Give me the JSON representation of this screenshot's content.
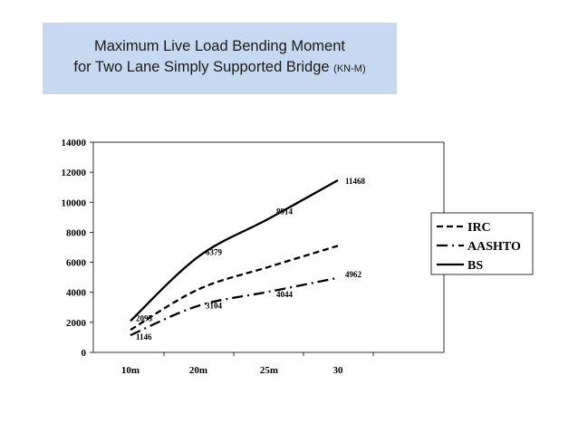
{
  "title": {
    "line1": "Maximum Live Load Bending Moment",
    "line2": "for Two Lane Simply Supported  Bridge",
    "unit": "(KN-M)"
  },
  "chart_data": {
    "type": "line",
    "categories": [
      "10m",
      "20m",
      "25m",
      "30"
    ],
    "ylim": [
      0,
      14000
    ],
    "yticks": [
      0,
      2000,
      4000,
      6000,
      8000,
      10000,
      12000,
      14000
    ],
    "grid": false,
    "legend_position": "right",
    "series": [
      {
        "name": "IRC",
        "style": "dashed",
        "values": [
          1500,
          4200,
          5700,
          7100
        ],
        "labels": [
          "",
          "",
          "",
          ""
        ]
      },
      {
        "name": "AASHTO",
        "style": "dash-dot",
        "values": [
          1146,
          3104,
          4044,
          4962
        ],
        "labels": [
          "1146",
          "3104",
          "4044",
          "4962"
        ]
      },
      {
        "name": "BS",
        "style": "solid",
        "values": [
          2095,
          6379,
          8914,
          11468
        ],
        "labels": [
          "2095",
          "6379",
          "8914",
          "11468"
        ]
      }
    ],
    "colors": {
      "line": "#000000",
      "axis": "#000000"
    }
  }
}
